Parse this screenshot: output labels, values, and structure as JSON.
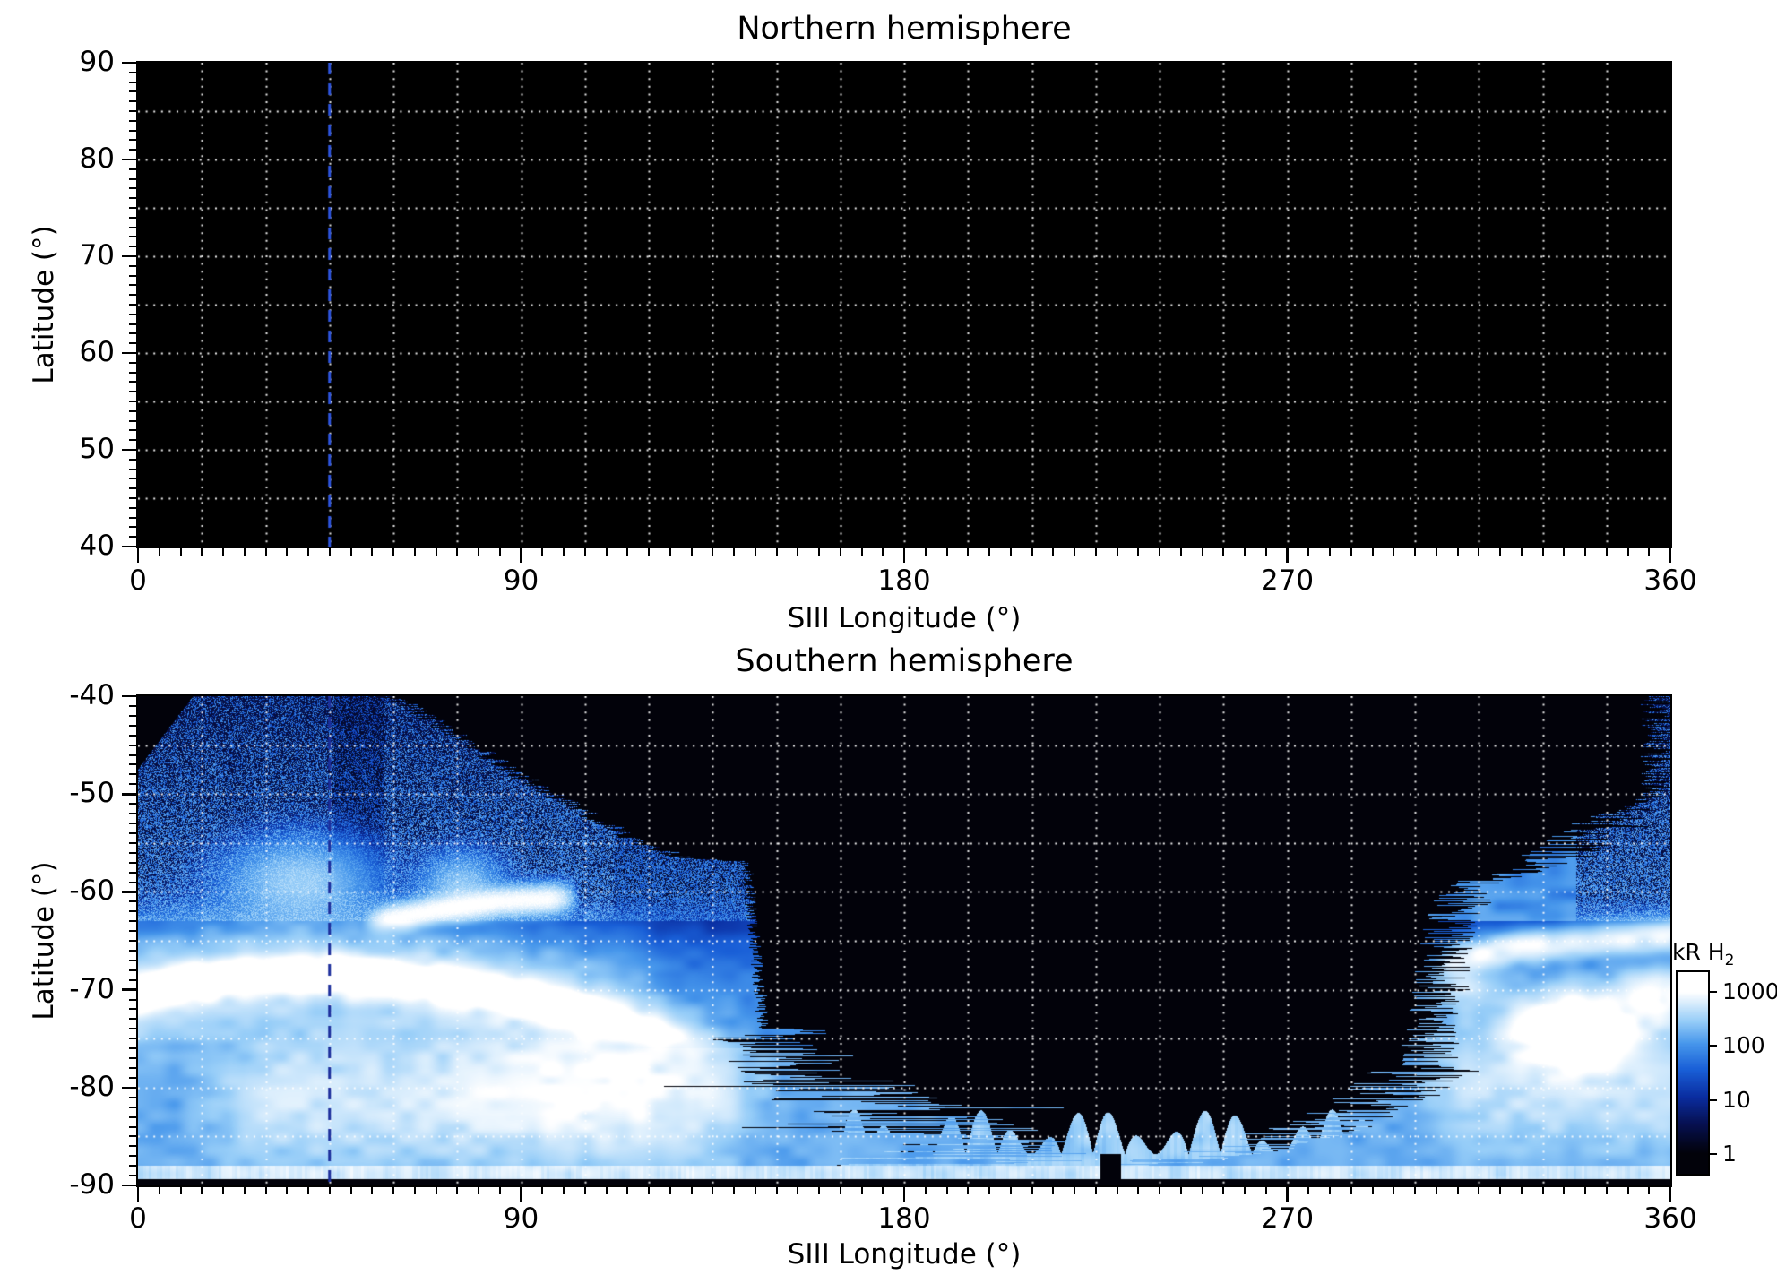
{
  "figure": {
    "marker_longitude_deg": 45,
    "description": "Two-panel map of H2 UV auroral emission versus SIII longitude and latitude; northern panel empty (black), southern panel shows auroral oval and polar emission with log color scale in kR."
  },
  "chart_data": [
    {
      "type": "heatmap",
      "title": "Northern hemisphere",
      "xlabel": "SIII Longitude (°)",
      "ylabel": "Latitude (°)",
      "xlim": [
        0,
        360
      ],
      "ylim": [
        40,
        90
      ],
      "xticks": [
        0,
        90,
        180,
        270,
        360
      ],
      "yticks": [
        90,
        80,
        70,
        60,
        50,
        40
      ],
      "x_minor_step": 5,
      "y_minor_step": 1,
      "grid": {
        "x_step_deg": 15,
        "y_step_deg": 5,
        "style": "dotted",
        "color": "#ffffff"
      },
      "background": "#000000",
      "marker_line": {
        "longitude_deg": 45,
        "style": "dashed",
        "color": "#2e55e0"
      },
      "data_summary": "No emission data shown; panel entirely black with white dotted graticule and a blue dashed meridian at 45°."
    },
    {
      "type": "heatmap",
      "title": "Southern hemisphere",
      "xlabel": "SIII Longitude (°)",
      "ylabel": "Latitude (°)",
      "xlim": [
        0,
        360
      ],
      "ylim": [
        -90,
        -40
      ],
      "xticks": [
        0,
        90,
        180,
        270,
        360
      ],
      "yticks": [
        -40,
        -50,
        -60,
        -70,
        -80,
        -90
      ],
      "x_minor_step": 5,
      "y_minor_step": 1,
      "grid": {
        "x_step_deg": 15,
        "y_step_deg": 5,
        "style": "dotted",
        "color": "#ffffff"
      },
      "background": "#000000",
      "marker_line": {
        "longitude_deg": 45,
        "style": "dashed",
        "color": "#1c2e9c"
      },
      "colorbar": {
        "label_main": "kR H",
        "label_sub": "2",
        "scale": "log",
        "ticks": [
          1000,
          100,
          10,
          1
        ],
        "range_log10": [
          -0.37,
          3.37
        ]
      },
      "colormap_stops": [
        [
          0.0,
          2,
          2,
          10
        ],
        [
          0.18,
          6,
          16,
          80
        ],
        [
          0.35,
          10,
          45,
          160
        ],
        [
          0.52,
          25,
          95,
          215
        ],
        [
          0.68,
          70,
          150,
          235
        ],
        [
          0.82,
          150,
          205,
          248
        ],
        [
          1.0,
          255,
          255,
          255
        ]
      ],
      "data_summary": "Speckled faint emission at -40° to -62° for lon 0-145°; bright main auroral oval near -68° to -75°; very bright patch near lon 330-355°, lat -72° to -77°; bright polar band at -88° to -89.5°; black no-data bowl from lon ~145-305° above ~-87°.",
      "render_model": {
        "left_boundary_u_lon": [
          0,
          60,
          5,
          78,
          10,
          97,
          15,
          118,
          16.5,
          128,
          17,
          143,
          34,
          147,
          39,
          160,
          42,
          172,
          44,
          186,
          46,
          196,
          48,
          205
        ],
        "left_start_u_lon": [
          0,
          13,
          4,
          6,
          7.5,
          0
        ],
        "right_boundary_u_lon": [
          9.5,
          357,
          12,
          350,
          15,
          339,
          17,
          331,
          18.5,
          318,
          20,
          313,
          23,
          308,
          30,
          306,
          38,
          303,
          40,
          297,
          42,
          288,
          43.5,
          280,
          45,
          271,
          46,
          262,
          47,
          250,
          48,
          238
        ],
        "main_oval_lon_lat": [
          0,
          -70.3,
          20,
          -68.8,
          40,
          -68.3,
          60,
          -68.8,
          80,
          -70,
          100,
          -71.8,
          115,
          -73.5,
          130,
          -75.5,
          142,
          -77.5,
          150,
          -78.5
        ],
        "oval_peak_kR": 2200,
        "oval_sigma_deg": 1.1,
        "upper_arc_lon_lat": [
          52,
          -63.4,
          70,
          -61.9,
          85,
          -61,
          104,
          -60.6
        ],
        "right_arc_lon_lat": [
          304,
          -67.2,
          325,
          -65.7,
          345,
          -64.9,
          360,
          -64.5
        ],
        "blobs_lon_lat_slon_slat_amp": [
          [
            338,
            -74.3,
            9,
            2.2,
            2400
          ],
          [
            356,
            -70.6,
            5,
            1.5,
            1100
          ],
          [
            312,
            -69.5,
            4,
            1.6,
            420
          ],
          [
            38,
            -59,
            9,
            2.3,
            260
          ],
          [
            76,
            -59.6,
            5,
            1.8,
            230
          ],
          [
            105,
            -80,
            18,
            3.5,
            520
          ]
        ],
        "left_band": {
          "center_lat": -81,
          "sigma": 4.2,
          "amp": 430,
          "lon_env": [
            8,
            38,
            128,
            152
          ]
        },
        "right_band": {
          "center_lat": -80,
          "sigma": 3.8,
          "amp": 380,
          "lon_env_start": [
            296,
            318
          ]
        },
        "bottom_band": {
          "top_lat": -88,
          "bottom_lat": -89.35,
          "amp": 370
        },
        "diffuse": {
          "u_start": 20,
          "u_full": 33,
          "amp": 165
        },
        "speckle": {
          "u_max": 23,
          "p0": 0.64,
          "p_slope": 0.015,
          "base0": 58,
          "base_slope": 3
        },
        "fan": {
          "lon_range": [
            165,
            300
          ]
        },
        "notch": {
          "lon_range": [
            226,
            231
          ],
          "lat_below": -86.8
        },
        "dark_column_lon": [
          46,
          58
        ],
        "dim_column": {
          "lon_range": [
            112,
            126
          ],
          "factor": 0.55
        },
        "south_pole_black_strip_lat": -89.35
      }
    }
  ]
}
